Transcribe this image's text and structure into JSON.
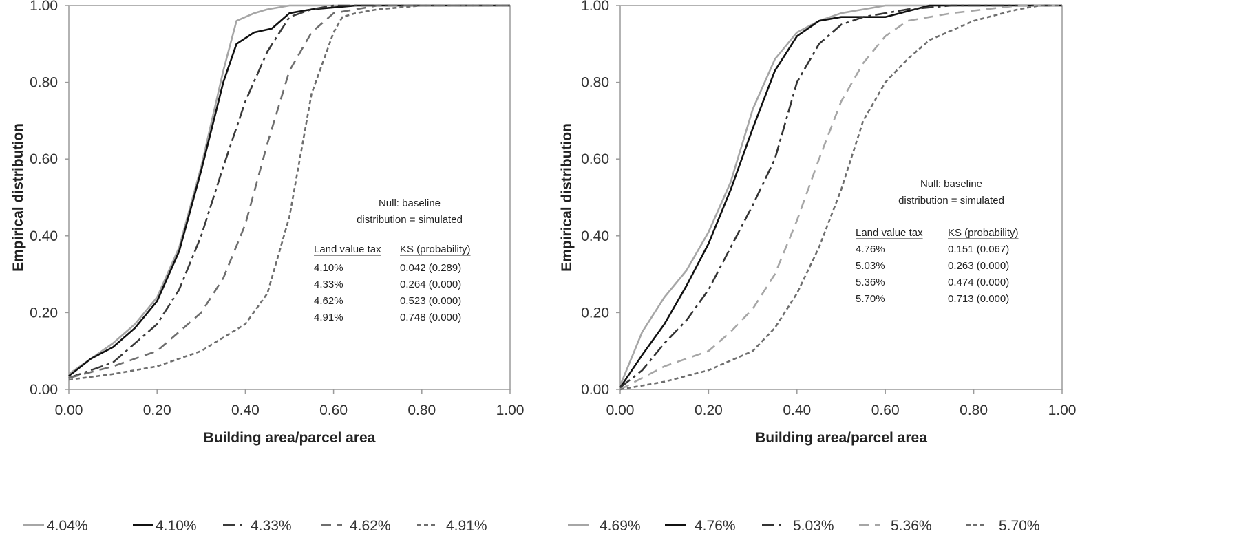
{
  "chart_data": [
    {
      "type": "line",
      "xlabel": "Building area/parcel area",
      "ylabel": "Empirical distribution",
      "xlim": [
        0,
        1
      ],
      "ylim": [
        0,
        1
      ],
      "x_ticks": [
        "0.00",
        "0.20",
        "0.40",
        "0.60",
        "0.80",
        "1.00"
      ],
      "y_ticks": [
        "0.00",
        "0.20",
        "0.40",
        "0.60",
        "0.80",
        "1.00"
      ],
      "legend_position": "bottom",
      "annotation": {
        "null_lines": [
          "Null: baseline",
          "distribution = simulated"
        ],
        "table_headers": [
          "Land value tax",
          "KS (probability)"
        ],
        "table_rows": [
          [
            "4.10%",
            "0.042 (0.289)"
          ],
          [
            "4.33%",
            "0.264 (0.000)"
          ],
          [
            "4.62%",
            "0.523 (0.000)"
          ],
          [
            "4.91%",
            "0.748 (0.000)"
          ]
        ]
      },
      "series": [
        {
          "name": "4.04%",
          "color": "#a6a6a6",
          "style": "solid",
          "x": [
            0,
            0.05,
            0.1,
            0.15,
            0.2,
            0.25,
            0.3,
            0.35,
            0.38,
            0.42,
            0.45,
            0.5,
            0.55,
            0.65,
            1.0
          ],
          "y": [
            0.04,
            0.08,
            0.12,
            0.17,
            0.24,
            0.37,
            0.58,
            0.83,
            0.96,
            0.98,
            0.99,
            1.0,
            1.0,
            1.0,
            1.0
          ]
        },
        {
          "name": "4.10%",
          "color": "#111111",
          "style": "solid",
          "x": [
            0,
            0.05,
            0.1,
            0.15,
            0.2,
            0.25,
            0.3,
            0.35,
            0.38,
            0.42,
            0.46,
            0.5,
            0.55,
            0.65,
            1.0
          ],
          "y": [
            0.035,
            0.08,
            0.11,
            0.16,
            0.23,
            0.36,
            0.57,
            0.8,
            0.9,
            0.93,
            0.94,
            0.98,
            0.99,
            1.0,
            1.0
          ]
        },
        {
          "name": "4.33%",
          "color": "#3a3a3a",
          "style": "dashdot",
          "x": [
            0,
            0.1,
            0.2,
            0.25,
            0.3,
            0.35,
            0.4,
            0.45,
            0.5,
            0.55,
            0.6,
            0.7,
            1.0
          ],
          "y": [
            0.03,
            0.07,
            0.17,
            0.26,
            0.4,
            0.58,
            0.75,
            0.88,
            0.97,
            0.99,
            1.0,
            1.0,
            1.0
          ]
        },
        {
          "name": "4.62%",
          "color": "#6e6e6e",
          "style": "dash",
          "x": [
            0,
            0.1,
            0.2,
            0.3,
            0.35,
            0.4,
            0.45,
            0.5,
            0.55,
            0.6,
            0.65,
            0.7,
            0.8,
            1.0
          ],
          "y": [
            0.03,
            0.06,
            0.1,
            0.2,
            0.29,
            0.43,
            0.64,
            0.83,
            0.93,
            0.98,
            0.99,
            1.0,
            1.0,
            1.0
          ]
        },
        {
          "name": "4.91%",
          "color": "#6e6e6e",
          "style": "shortdash",
          "x": [
            0,
            0.1,
            0.2,
            0.3,
            0.4,
            0.45,
            0.5,
            0.55,
            0.6,
            0.62,
            0.65,
            0.7,
            0.8,
            1.0
          ],
          "y": [
            0.025,
            0.04,
            0.06,
            0.1,
            0.17,
            0.25,
            0.45,
            0.77,
            0.93,
            0.97,
            0.98,
            0.99,
            1.0,
            1.0
          ]
        }
      ]
    },
    {
      "type": "line",
      "xlabel": "Building area/parcel area",
      "ylabel": "Empirical distribution",
      "xlim": [
        0,
        1
      ],
      "ylim": [
        0,
        1
      ],
      "x_ticks": [
        "0.00",
        "0.20",
        "0.40",
        "0.60",
        "0.80",
        "1.00"
      ],
      "y_ticks": [
        "0.00",
        "0.20",
        "0.40",
        "0.60",
        "0.80",
        "1.00"
      ],
      "legend_position": "bottom",
      "annotation": {
        "null_lines": [
          "Null: baseline",
          "distribution = simulated"
        ],
        "table_headers": [
          "Land value tax",
          "KS (probability)"
        ],
        "table_rows": [
          [
            "4.76%",
            "0.151 (0.067)"
          ],
          [
            "5.03%",
            "0.263 (0.000)"
          ],
          [
            "5.36%",
            "0.474 (0.000)"
          ],
          [
            "5.70%",
            "0.713 (0.000)"
          ]
        ]
      },
      "series": [
        {
          "name": "4.69%",
          "color": "#a6a6a6",
          "style": "solid",
          "x": [
            0,
            0.05,
            0.1,
            0.15,
            0.2,
            0.25,
            0.3,
            0.35,
            0.4,
            0.45,
            0.5,
            0.55,
            0.6,
            0.7,
            1.0
          ],
          "y": [
            0.01,
            0.15,
            0.24,
            0.31,
            0.41,
            0.54,
            0.73,
            0.86,
            0.93,
            0.96,
            0.98,
            0.99,
            1.0,
            1.0,
            1.0
          ]
        },
        {
          "name": "4.76%",
          "color": "#111111",
          "style": "solid",
          "x": [
            0,
            0.05,
            0.1,
            0.15,
            0.2,
            0.25,
            0.3,
            0.35,
            0.4,
            0.45,
            0.5,
            0.55,
            0.6,
            0.7,
            1.0
          ],
          "y": [
            0.005,
            0.09,
            0.17,
            0.27,
            0.38,
            0.52,
            0.68,
            0.83,
            0.92,
            0.96,
            0.97,
            0.97,
            0.97,
            1.0,
            1.0
          ]
        },
        {
          "name": "5.03%",
          "color": "#333333",
          "style": "dashdot",
          "x": [
            0,
            0.05,
            0.1,
            0.15,
            0.2,
            0.25,
            0.3,
            0.35,
            0.4,
            0.45,
            0.5,
            0.55,
            0.65,
            0.75,
            1.0
          ],
          "y": [
            0.005,
            0.05,
            0.12,
            0.18,
            0.26,
            0.37,
            0.48,
            0.6,
            0.8,
            0.9,
            0.95,
            0.97,
            0.99,
            1.0,
            1.0
          ]
        },
        {
          "name": "5.36%",
          "color": "#a6a6a6",
          "style": "dash",
          "x": [
            0,
            0.1,
            0.2,
            0.25,
            0.3,
            0.35,
            0.4,
            0.45,
            0.5,
            0.55,
            0.6,
            0.65,
            0.75,
            0.9,
            1.0
          ],
          "y": [
            0.0,
            0.06,
            0.1,
            0.15,
            0.21,
            0.3,
            0.44,
            0.6,
            0.75,
            0.85,
            0.92,
            0.96,
            0.98,
            1.0,
            1.0
          ]
        },
        {
          "name": "5.70%",
          "color": "#6e6e6e",
          "style": "shortdash",
          "x": [
            0,
            0.1,
            0.2,
            0.3,
            0.35,
            0.4,
            0.45,
            0.5,
            0.55,
            0.6,
            0.65,
            0.7,
            0.8,
            0.9,
            0.95,
            1.0
          ],
          "y": [
            0.0,
            0.02,
            0.05,
            0.1,
            0.16,
            0.25,
            0.37,
            0.52,
            0.7,
            0.8,
            0.86,
            0.91,
            0.96,
            0.99,
            1.0,
            1.0
          ]
        }
      ]
    }
  ]
}
